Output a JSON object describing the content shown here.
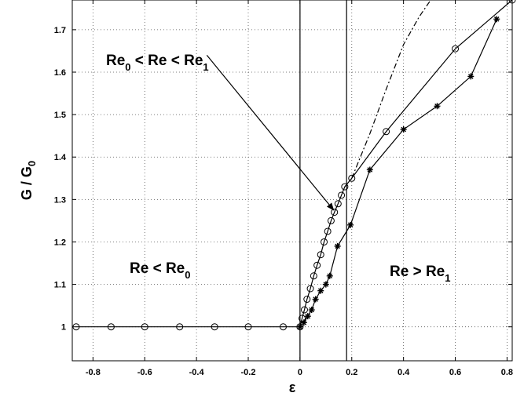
{
  "chart_data": {
    "type": "line",
    "xlabel": "ε",
    "ylabel": "G / G",
    "ylabel_sub": "0",
    "xlim": [
      -0.88,
      0.82
    ],
    "ylim": [
      0.92,
      1.77
    ],
    "xticks": [
      "-0.8",
      "-0.6",
      "-0.4",
      "-0.2",
      "0",
      "0.2",
      "0.4",
      "0.6",
      "0.8"
    ],
    "xtick_values": [
      -0.8,
      -0.6,
      -0.4,
      -0.2,
      0,
      0.2,
      0.4,
      0.6,
      0.8
    ],
    "yticks": [
      "1",
      "1.1",
      "1.2",
      "1.3",
      "1.4",
      "1.5",
      "1.6",
      "1.7"
    ],
    "ytick_values": [
      1,
      1.1,
      1.2,
      1.3,
      1.4,
      1.5,
      1.6,
      1.7
    ],
    "grid": true,
    "vertical_lines": [
      0,
      0.18
    ],
    "series": [
      {
        "marker": "circle",
        "line": "solid",
        "x": [
          -0.865,
          -0.73,
          -0.6,
          -0.465,
          -0.33,
          -0.2,
          -0.065,
          0,
          0.008,
          0.017,
          0.027,
          0.04,
          0.053,
          0.066,
          0.08,
          0.093,
          0.107,
          0.12,
          0.133,
          0.147,
          0.16,
          0.173,
          0.2,
          0.333,
          0.6,
          0.82
        ],
        "y": [
          1.0,
          1.0,
          1.0,
          1.0,
          1.0,
          1.0,
          1.0,
          1.0,
          1.02,
          1.04,
          1.065,
          1.09,
          1.12,
          1.145,
          1.17,
          1.2,
          1.225,
          1.25,
          1.27,
          1.29,
          1.31,
          1.33,
          1.35,
          1.46,
          1.655,
          1.77
        ]
      },
      {
        "marker": "star",
        "line": "solid",
        "x": [
          0,
          0.015,
          0.03,
          0.045,
          0.06,
          0.08,
          0.1,
          0.115,
          0.145,
          0.195,
          0.27,
          0.4,
          0.53,
          0.66,
          0.76
        ],
        "y": [
          1.0,
          1.01,
          1.025,
          1.04,
          1.065,
          1.085,
          1.1,
          1.12,
          1.19,
          1.24,
          1.37,
          1.465,
          1.52,
          1.59,
          1.725
        ]
      },
      {
        "marker": "none",
        "line": "dashdot",
        "x": [
          0.2,
          0.27,
          0.33,
          0.4,
          0.46,
          0.505
        ],
        "y": [
          1.35,
          1.455,
          1.555,
          1.665,
          1.73,
          1.77
        ]
      }
    ],
    "annotations": [
      {
        "parts": [
          "Re",
          "0",
          " < Re < Re",
          "1"
        ],
        "subs": [
          false,
          true,
          false,
          true
        ]
      },
      {
        "parts": [
          "Re < Re",
          "0"
        ],
        "subs": [
          false,
          true
        ]
      },
      {
        "parts": [
          "Re > Re",
          "1"
        ],
        "subs": [
          false,
          true
        ]
      }
    ],
    "arrow": {
      "from": [
        -0.36,
        1.64
      ],
      "to": [
        0.13,
        1.275
      ]
    }
  }
}
